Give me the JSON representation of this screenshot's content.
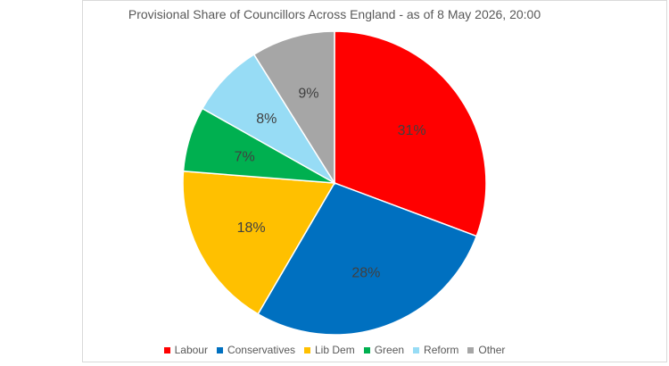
{
  "chart_data": {
    "type": "pie",
    "title": "Provisional Share of Councillors Across England - as of 8 May 2026, 20:00",
    "slices": [
      {
        "label": "Labour",
        "value": 31,
        "display": "31%",
        "color": "#ff0000"
      },
      {
        "label": "Conservatives",
        "value": 28,
        "display": "28%",
        "color": "#0070c0"
      },
      {
        "label": "Lib Dem",
        "value": 18,
        "display": "18%",
        "color": "#ffc000"
      },
      {
        "label": "Green",
        "value": 7,
        "display": "7%",
        "color": "#00b050"
      },
      {
        "label": "Reform",
        "value": 8,
        "display": "8%",
        "color": "#97dcf5"
      },
      {
        "label": "Other",
        "value": 9,
        "display": "9%",
        "color": "#a6a6a6"
      }
    ],
    "legend_position": "bottom"
  }
}
